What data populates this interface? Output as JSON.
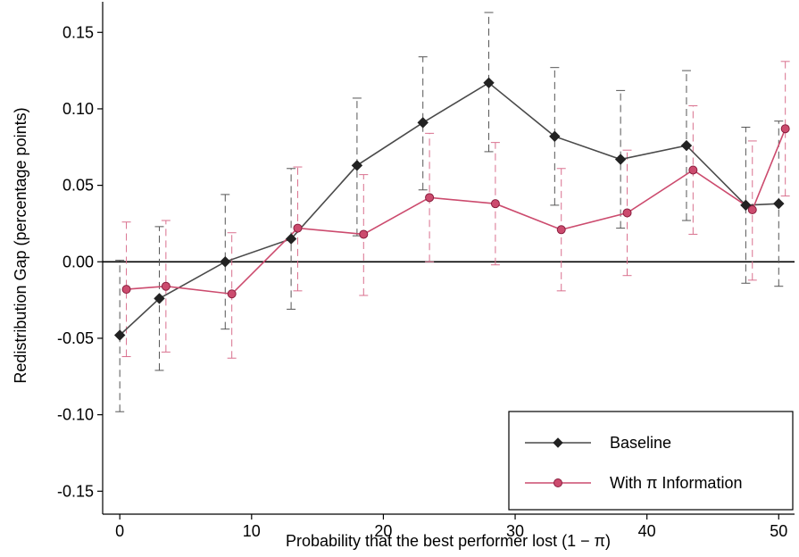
{
  "chart_data": {
    "type": "line",
    "title": "",
    "xlabel": "Probability that the best performer lost (1 − π)",
    "ylabel": "Redistribution Gap (percentage points)",
    "xlim": [
      -1.3,
      51.2
    ],
    "ylim": [
      -0.165,
      0.17
    ],
    "xticks": [
      0,
      10,
      20,
      30,
      40,
      50
    ],
    "xtick_labels": [
      "0",
      "10",
      "20",
      "30",
      "40",
      "50"
    ],
    "yticks": [
      0.15,
      0.1,
      0.05,
      0.0,
      -0.05,
      -0.1,
      -0.15
    ],
    "ytick_labels": [
      "0.15",
      "0.10",
      "0.05",
      "0.00",
      "-0.05",
      "-0.10",
      "-0.15"
    ],
    "reference_line": 0,
    "grid": false,
    "legend_position": "bottom-right",
    "series": [
      {
        "name": "Baseline",
        "color": "#4a4a4a",
        "ci_color": "#555555",
        "marker": "diamond",
        "x": [
          0,
          3,
          8,
          13,
          18,
          23,
          28,
          33,
          38,
          43,
          47.5,
          50
        ],
        "y": [
          -0.048,
          -0.024,
          0.0,
          0.015,
          0.063,
          0.091,
          0.117,
          0.082,
          0.067,
          0.076,
          0.037,
          0.038
        ],
        "ci_low": [
          -0.098,
          -0.071,
          -0.044,
          -0.031,
          0.017,
          0.047,
          0.072,
          0.037,
          0.022,
          0.027,
          -0.014,
          -0.016
        ],
        "ci_high": [
          0.001,
          0.023,
          0.044,
          0.061,
          0.107,
          0.134,
          0.163,
          0.127,
          0.112,
          0.125,
          0.088,
          0.092
        ]
      },
      {
        "name": "With π Information",
        "color": "#cc4b6e",
        "ci_color": "#d9708e",
        "marker": "circle",
        "x": [
          0.5,
          3.5,
          8.5,
          13.5,
          18.5,
          23.5,
          28.5,
          33.5,
          38.5,
          43.5,
          48,
          50.5
        ],
        "y": [
          -0.018,
          -0.016,
          -0.021,
          0.022,
          0.018,
          0.042,
          0.038,
          0.021,
          0.032,
          0.06,
          0.034,
          0.087
        ],
        "ci_low": [
          -0.062,
          -0.059,
          -0.063,
          -0.019,
          -0.022,
          0.0,
          -0.002,
          -0.019,
          -0.009,
          0.018,
          -0.012,
          0.043
        ],
        "ci_high": [
          0.026,
          0.027,
          0.019,
          0.062,
          0.057,
          0.084,
          0.078,
          0.061,
          0.073,
          0.102,
          0.079,
          0.131
        ]
      }
    ]
  }
}
